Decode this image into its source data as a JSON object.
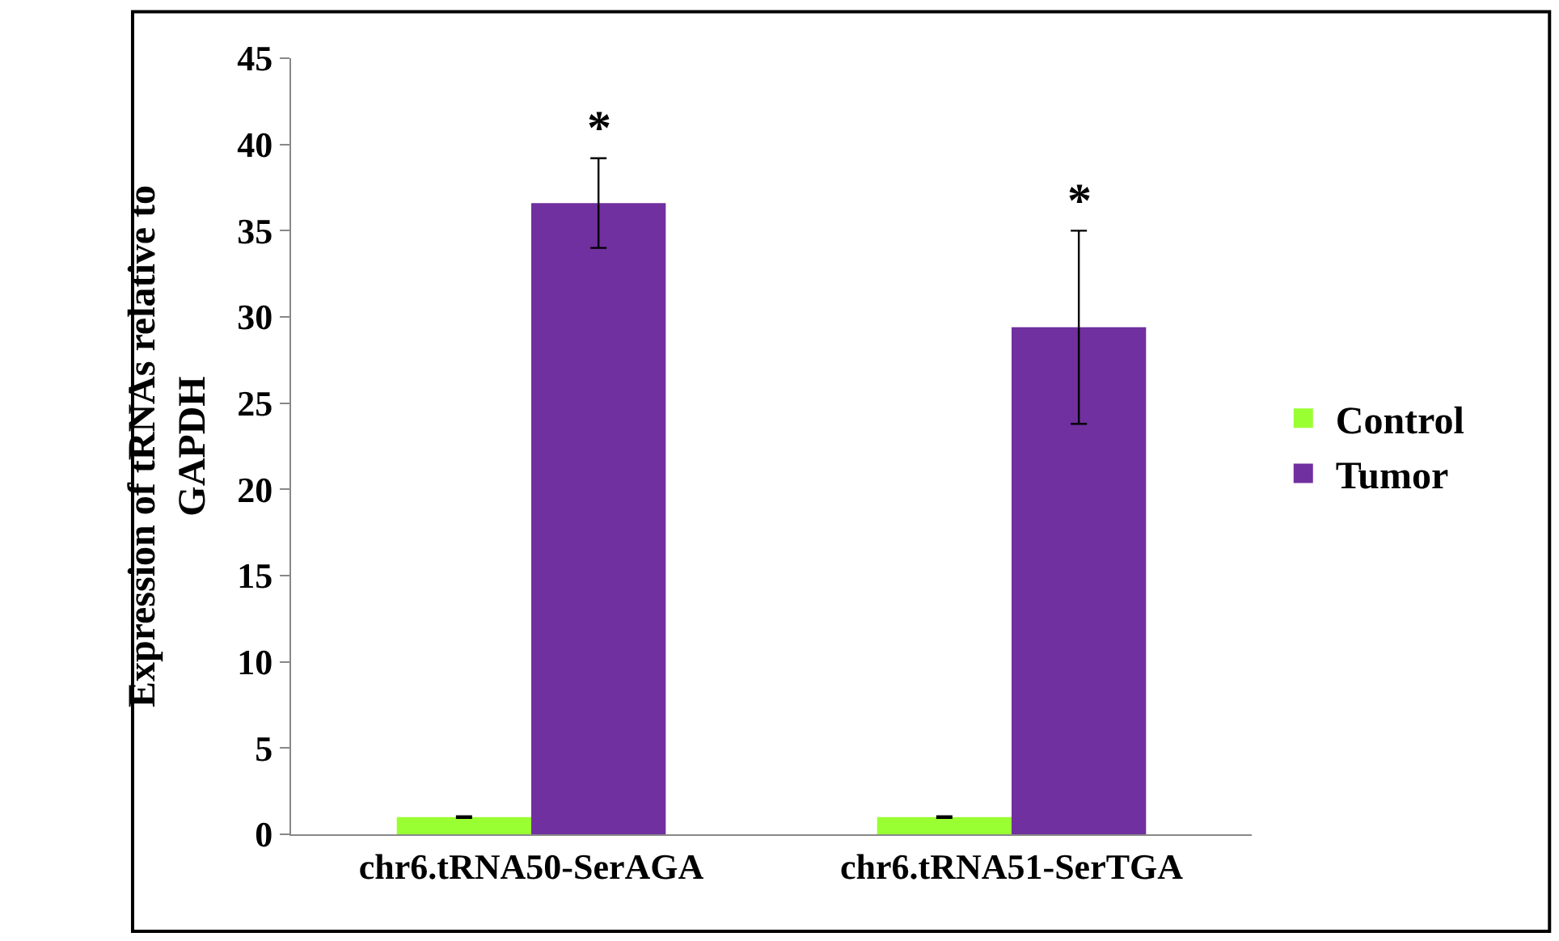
{
  "chart_data": {
    "type": "bar",
    "ylabel": "Expression of tRNAs relative to GAPDH",
    "categories": [
      "chr6.tRNA50-SerAGA",
      "chr6.tRNA51-SerTGA"
    ],
    "series": [
      {
        "name": "Control",
        "color": "#99ff33",
        "values": [
          1.0,
          1.0
        ],
        "errors": [
          0.05,
          0.05
        ]
      },
      {
        "name": "Tumor",
        "color": "#7030a0",
        "values": [
          36.6,
          29.4
        ],
        "errors": [
          2.6,
          5.6
        ]
      }
    ],
    "ylim": [
      0,
      45
    ],
    "yticks": [
      0,
      5,
      10,
      15,
      20,
      25,
      30,
      35,
      40,
      45
    ],
    "annotations": [
      "*",
      "*"
    ],
    "legend": "right"
  }
}
